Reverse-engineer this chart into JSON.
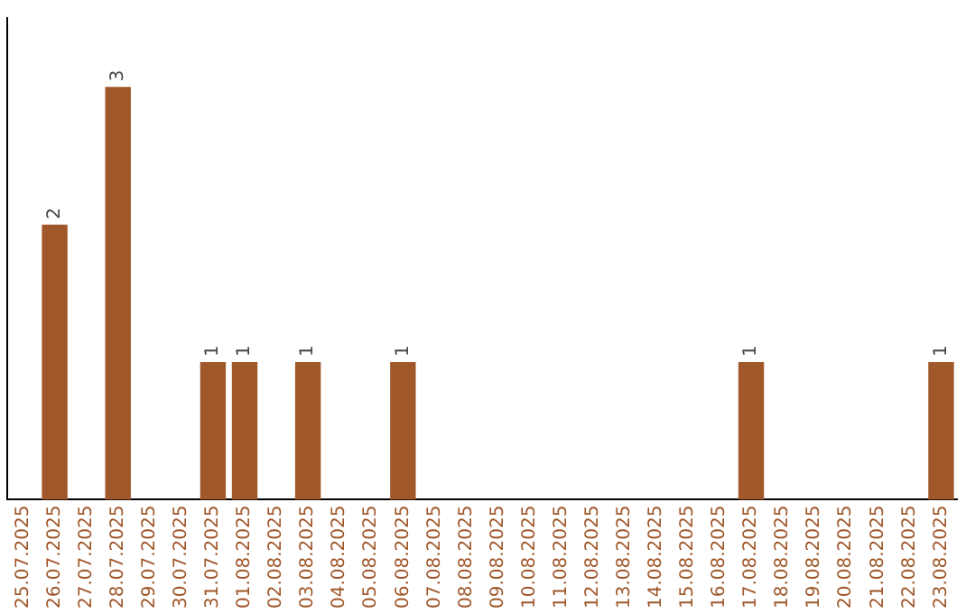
{
  "chart_data": {
    "type": "bar",
    "categories": [
      "25.07.2025",
      "26.07.2025",
      "27.07.2025",
      "28.07.2025",
      "29.07.2025",
      "30.07.2025",
      "31.07.2025",
      "01.08.2025",
      "02.08.2025",
      "03.08.2025",
      "04.08.2025",
      "05.08.2025",
      "06.08.2025",
      "07.08.2025",
      "08.08.2025",
      "09.08.2025",
      "10.08.2025",
      "11.08.2025",
      "12.08.2025",
      "13.08.2025",
      "14.08.2025",
      "15.08.2025",
      "16.08.2025",
      "17.08.2025",
      "18.08.2025",
      "19.08.2025",
      "20.08.2025",
      "21.08.2025",
      "22.08.2025",
      "23.08.2025"
    ],
    "values": [
      0,
      2,
      0,
      3,
      0,
      0,
      1,
      1,
      0,
      1,
      0,
      0,
      1,
      0,
      0,
      0,
      0,
      0,
      0,
      0,
      0,
      0,
      0,
      1,
      0,
      0,
      0,
      0,
      0,
      1
    ],
    "value_labels": [
      null,
      "2",
      null,
      "3",
      null,
      null,
      "1",
      "1",
      null,
      "1",
      null,
      null,
      "1",
      null,
      null,
      null,
      null,
      null,
      null,
      null,
      null,
      null,
      null,
      "1",
      null,
      null,
      null,
      null,
      null,
      "1"
    ],
    "color": "#a0572a",
    "tick_labels": "x",
    "grid": false,
    "legend": false
  }
}
